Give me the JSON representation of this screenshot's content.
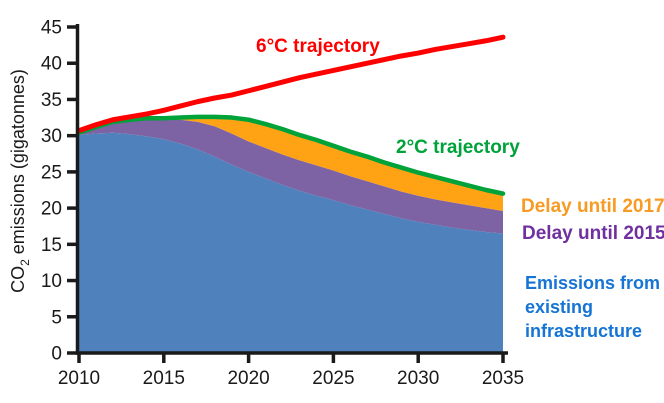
{
  "chart_data": {
    "type": "area",
    "title": "",
    "ylabel_parts": {
      "pre": "CO",
      "sub": "2",
      "post": " emissions (gigatonnes)"
    },
    "xlabel": "",
    "xlim": [
      2010,
      2035
    ],
    "ylim": [
      0,
      45
    ],
    "x_ticks": [
      "2010",
      "2015",
      "2020",
      "2025",
      "2030",
      "2035"
    ],
    "x_tick_years": [
      2010,
      2015,
      2020,
      2025,
      2030,
      2035
    ],
    "y_ticks": [
      0,
      5,
      10,
      15,
      20,
      25,
      30,
      35,
      40,
      45
    ],
    "grid": false,
    "legend_position": "right-inline-labels",
    "x": [
      2010,
      2011,
      2012,
      2013,
      2014,
      2015,
      2016,
      2017,
      2018,
      2019,
      2020,
      2021,
      2022,
      2023,
      2024,
      2025,
      2026,
      2027,
      2028,
      2029,
      2030,
      2031,
      2032,
      2033,
      2034,
      2035
    ],
    "stacked_tops_note": "area series values are absolute stack-top levels in gigatonnes",
    "series": [
      {
        "name": "Emissions from existing infrastructure",
        "type": "area",
        "color": "#4F81BD",
        "values": [
          30.1,
          30.3,
          30.4,
          30.2,
          29.9,
          29.5,
          28.9,
          28.1,
          27.1,
          26.0,
          25.0,
          24.1,
          23.2,
          22.4,
          21.7,
          21.1,
          20.4,
          19.8,
          19.2,
          18.6,
          18.1,
          17.7,
          17.3,
          17.0,
          16.7,
          16.5
        ]
      },
      {
        "name": "Delay until 2015",
        "type": "area",
        "color": "#7E63A4",
        "values": [
          30.2,
          31.0,
          31.7,
          32.1,
          32.3,
          32.3,
          32.2,
          31.9,
          31.3,
          30.3,
          29.2,
          28.3,
          27.4,
          26.6,
          25.9,
          25.2,
          24.4,
          23.7,
          23.0,
          22.3,
          21.7,
          21.2,
          20.8,
          20.4,
          20.0,
          19.6
        ]
      },
      {
        "name": "Delay until 2017",
        "type": "area",
        "color": "#FFA214",
        "values": [
          30.4,
          31.2,
          31.9,
          32.2,
          32.4,
          32.4,
          32.5,
          32.6,
          32.6,
          32.5,
          32.2,
          31.6,
          30.9,
          30.1,
          29.4,
          28.6,
          27.8,
          27.1,
          26.3,
          25.6,
          24.9,
          24.3,
          23.7,
          23.1,
          22.5,
          22.0
        ]
      },
      {
        "name": "2°C trajectory",
        "type": "line",
        "color": "#00A23A",
        "values": [
          30.4,
          31.2,
          31.9,
          32.2,
          32.4,
          32.4,
          32.5,
          32.6,
          32.6,
          32.5,
          32.2,
          31.6,
          30.9,
          30.1,
          29.4,
          28.6,
          27.8,
          27.1,
          26.3,
          25.6,
          24.9,
          24.3,
          23.7,
          23.1,
          22.5,
          22.0
        ]
      },
      {
        "name": "6°C trajectory",
        "type": "line",
        "color": "#FF0000",
        "values": [
          30.7,
          31.5,
          32.2,
          32.6,
          33.0,
          33.5,
          34.1,
          34.7,
          35.2,
          35.6,
          36.2,
          36.8,
          37.4,
          38.0,
          38.5,
          39.0,
          39.5,
          40.0,
          40.5,
          41.0,
          41.4,
          41.9,
          42.3,
          42.7,
          43.1,
          43.6
        ]
      }
    ],
    "annotations": [
      {
        "text": "6°C trajectory",
        "color": "#FF0000"
      },
      {
        "text": "2°C trajectory",
        "color": "#00A23A"
      },
      {
        "text": "Delay until 2017",
        "color": "#F79B25"
      },
      {
        "text": "Delay until 2015",
        "color": "#7030A0"
      },
      {
        "text": "Emissions from existing infrastructure",
        "color": "#1574D4"
      }
    ],
    "axis_color": "#1a1a1a"
  }
}
